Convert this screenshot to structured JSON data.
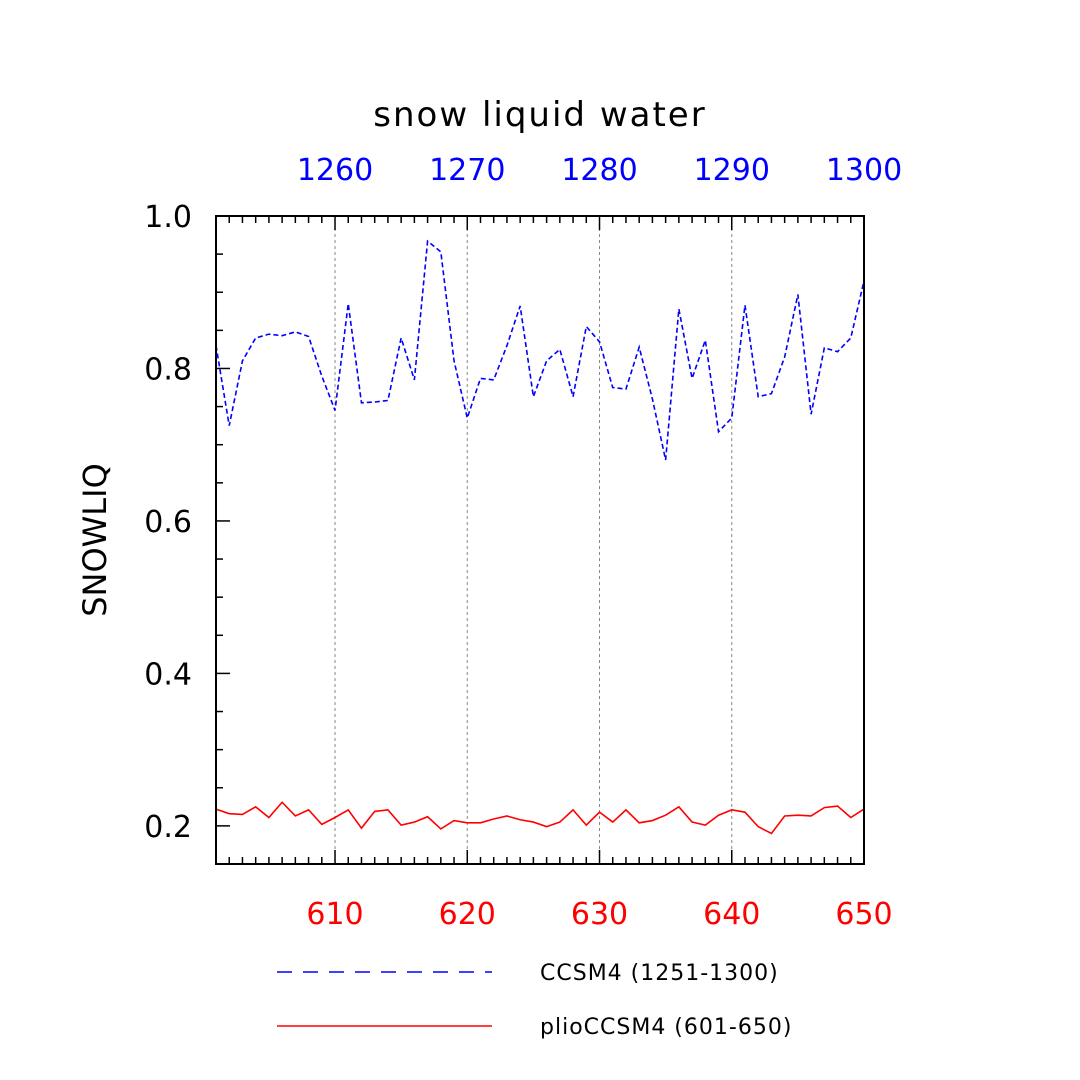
{
  "chart_data": {
    "type": "line",
    "title": "snow liquid water",
    "ylabel": "SNOWLIQ",
    "xlabel": "",
    "ylim": [
      0.15,
      1.0
    ],
    "yticks": [
      "1.0",
      "0.8",
      "0.6",
      "0.4",
      "0.2"
    ],
    "ytick_values": [
      1.0,
      0.8,
      0.6,
      0.4,
      0.2
    ],
    "bottom_axis": {
      "range": [
        601,
        650
      ],
      "ticks": [
        "610",
        "620",
        "630",
        "640",
        "650"
      ],
      "tick_values": [
        610,
        620,
        630,
        640,
        650
      ],
      "color": "#ff0000"
    },
    "top_axis": {
      "range": [
        1251,
        1300
      ],
      "ticks": [
        "1260",
        "1270",
        "1280",
        "1290",
        "1300"
      ],
      "tick_values": [
        1260,
        1270,
        1280,
        1290,
        1300
      ],
      "color": "#0000ff"
    },
    "grid": "vertical dashed at major ticks",
    "legend_position": "bottom",
    "series": [
      {
        "name": "CCSM4 (1251-1300)",
        "axis": "top",
        "color": "#0000ff",
        "style": "dashed",
        "x": [
          1251,
          1252,
          1253,
          1254,
          1255,
          1256,
          1257,
          1258,
          1259,
          1260,
          1261,
          1262,
          1263,
          1264,
          1265,
          1266,
          1267,
          1268,
          1269,
          1270,
          1271,
          1272,
          1273,
          1274,
          1275,
          1276,
          1277,
          1278,
          1279,
          1280,
          1281,
          1282,
          1283,
          1284,
          1285,
          1286,
          1287,
          1288,
          1289,
          1290,
          1291,
          1292,
          1293,
          1294,
          1295,
          1296,
          1297,
          1298,
          1299,
          1300
        ],
        "values": [
          0.83,
          0.725,
          0.81,
          0.84,
          0.845,
          0.843,
          0.848,
          0.842,
          0.79,
          0.745,
          0.885,
          0.755,
          0.756,
          0.758,
          0.84,
          0.785,
          0.967,
          0.953,
          0.81,
          0.735,
          0.787,
          0.785,
          0.83,
          0.882,
          0.763,
          0.81,
          0.825,
          0.763,
          0.855,
          0.835,
          0.775,
          0.773,
          0.828,
          0.76,
          0.68,
          0.878,
          0.787,
          0.837,
          0.717,
          0.735,
          0.883,
          0.763,
          0.767,
          0.815,
          0.897,
          0.74,
          0.827,
          0.822,
          0.84,
          0.915
        ]
      },
      {
        "name": "plioCCSM4 (601-650)",
        "axis": "bottom",
        "color": "#ff0000",
        "style": "solid",
        "x": [
          601,
          602,
          603,
          604,
          605,
          606,
          607,
          608,
          609,
          610,
          611,
          612,
          613,
          614,
          615,
          616,
          617,
          618,
          619,
          620,
          621,
          622,
          623,
          624,
          625,
          626,
          627,
          628,
          629,
          630,
          631,
          632,
          633,
          634,
          635,
          636,
          637,
          638,
          639,
          640,
          641,
          642,
          643,
          644,
          645,
          646,
          647,
          648,
          649,
          650
        ],
        "values": [
          0.222,
          0.216,
          0.215,
          0.225,
          0.211,
          0.231,
          0.213,
          0.221,
          0.202,
          0.211,
          0.221,
          0.197,
          0.219,
          0.221,
          0.201,
          0.205,
          0.212,
          0.196,
          0.207,
          0.204,
          0.204,
          0.209,
          0.213,
          0.208,
          0.205,
          0.199,
          0.205,
          0.221,
          0.201,
          0.218,
          0.205,
          0.221,
          0.204,
          0.207,
          0.214,
          0.225,
          0.205,
          0.201,
          0.214,
          0.221,
          0.218,
          0.199,
          0.19,
          0.213,
          0.214,
          0.213,
          0.224,
          0.226,
          0.211,
          0.222
        ]
      }
    ]
  }
}
